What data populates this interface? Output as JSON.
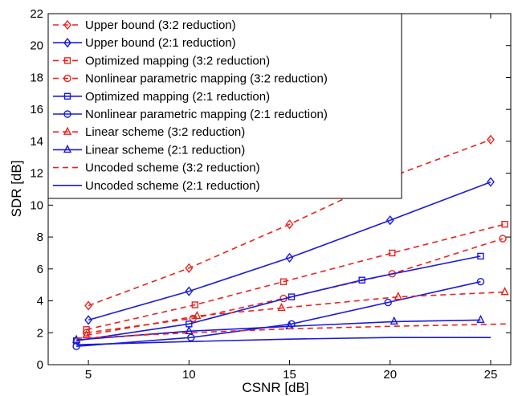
{
  "chart_data": {
    "type": "line",
    "xlabel": "CSNR [dB]",
    "ylabel": "SDR [dB]",
    "xlim": [
      3,
      26
    ],
    "ylim": [
      0,
      22
    ],
    "xticks": [
      5,
      10,
      15,
      20,
      25
    ],
    "yticks": [
      0,
      2,
      4,
      6,
      8,
      10,
      12,
      14,
      16,
      18,
      20,
      22
    ],
    "grid": false,
    "legend_position": "top-left",
    "colors": {
      "red": "#e8231e",
      "blue": "#1a1adc"
    },
    "series": [
      {
        "name": "Upper bound (3:2 reduction)",
        "color": "red",
        "dash": "dashed",
        "marker": "diamond",
        "x": [
          5,
          10,
          15,
          20,
          25
        ],
        "y": [
          3.7,
          6.05,
          8.8,
          11.75,
          14.1
        ]
      },
      {
        "name": "Upper bound (2:1 reduction)",
        "color": "blue",
        "dash": "solid",
        "marker": "diamond",
        "x": [
          5,
          10,
          15,
          20,
          25
        ],
        "y": [
          2.8,
          4.6,
          6.7,
          9.05,
          11.45
        ]
      },
      {
        "name": "Optimized mapping (3:2 reduction)",
        "color": "red",
        "dash": "dashed",
        "marker": "square",
        "x": [
          4.9,
          10.3,
          14.7,
          20.1,
          25.7
        ],
        "y": [
          2.2,
          3.75,
          5.2,
          7.0,
          8.8
        ]
      },
      {
        "name": "Nonlinear parametric mapping (3:2 reduction)",
        "color": "red",
        "dash": "dashed",
        "marker": "circle",
        "x": [
          4.9,
          10.2,
          14.7,
          20.1,
          25.6
        ],
        "y": [
          2.0,
          2.9,
          4.15,
          5.7,
          7.9
        ]
      },
      {
        "name": "Optimized mapping (2:1 reduction)",
        "color": "blue",
        "dash": "solid",
        "marker": "square",
        "x": [
          4.4,
          10.0,
          15.1,
          18.6,
          24.5
        ],
        "y": [
          1.5,
          2.55,
          4.25,
          5.3,
          6.8
        ]
      },
      {
        "name": "Nonlinear parametric mapping (2:1 reduction)",
        "color": "blue",
        "dash": "solid",
        "marker": "circle",
        "x": [
          4.4,
          10.1,
          15.1,
          19.9,
          24.5
        ],
        "y": [
          1.15,
          1.7,
          2.55,
          3.9,
          5.2
        ]
      },
      {
        "name": "Linear scheme (3:2 reduction)",
        "color": "red",
        "dash": "dashed",
        "marker": "triangle",
        "x": [
          4.9,
          10.4,
          14.6,
          20.4,
          25.7
        ],
        "y": [
          1.85,
          3.05,
          3.55,
          4.25,
          4.55
        ]
      },
      {
        "name": "Linear scheme (2:1 reduction)",
        "color": "blue",
        "dash": "solid",
        "marker": "triangle",
        "x": [
          4.4,
          10.0,
          15.0,
          20.2,
          24.5
        ],
        "y": [
          1.55,
          2.1,
          2.4,
          2.7,
          2.8
        ]
      },
      {
        "name": "Uncoded scheme (3:2 reduction)",
        "color": "red",
        "dash": "dashed",
        "marker": "none",
        "x": [
          4.4,
          10,
          15,
          20,
          25.8
        ],
        "y": [
          1.65,
          2.0,
          2.25,
          2.4,
          2.55
        ]
      },
      {
        "name": "Uncoded scheme (2:1 reduction)",
        "color": "blue",
        "dash": "solid",
        "marker": "none",
        "x": [
          4.4,
          10,
          15,
          20,
          25
        ],
        "y": [
          1.25,
          1.45,
          1.6,
          1.7,
          1.7
        ]
      }
    ]
  }
}
